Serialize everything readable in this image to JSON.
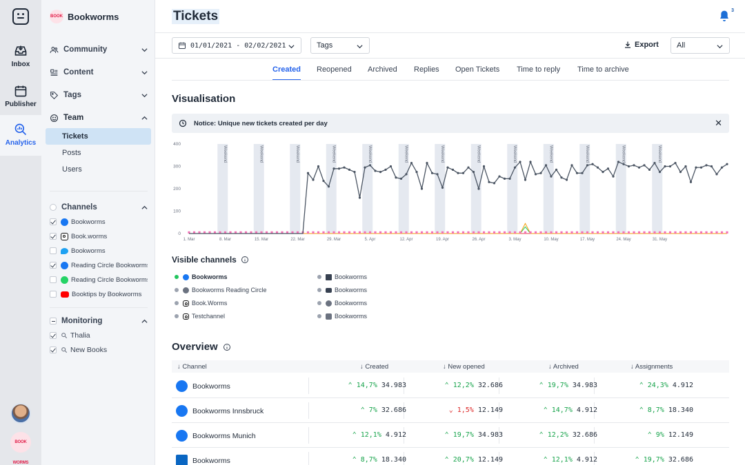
{
  "rail": {
    "items": [
      {
        "label": "Inbox",
        "icon": "inbox-icon"
      },
      {
        "label": "Publisher",
        "icon": "calendar-icon"
      },
      {
        "label": "Analytics",
        "icon": "analytics-icon"
      }
    ],
    "brand_avatar_text": "BOOK WORMS"
  },
  "sidebar": {
    "org_name": "Bookworms",
    "org_logo_text": "BOOK",
    "sections": [
      {
        "label": "Community",
        "icon": "people-icon"
      },
      {
        "label": "Content",
        "icon": "content-icon"
      },
      {
        "label": "Tags",
        "icon": "tag-icon"
      },
      {
        "label": "Team",
        "icon": "smiley-icon"
      }
    ],
    "team_items": [
      "Tickets",
      "Posts",
      "Users"
    ],
    "channels_label": "Channels",
    "channels": [
      {
        "label": "Bookworms",
        "type": "fb",
        "checked": true
      },
      {
        "label": "Book.worms",
        "type": "ig",
        "checked": true
      },
      {
        "label": "Bookworms",
        "type": "tw",
        "checked": false
      },
      {
        "label": "Reading Circle Bookworms",
        "type": "fb",
        "checked": true
      },
      {
        "label": "Reading Circle Bookworms",
        "type": "wa",
        "checked": false
      },
      {
        "label": "Booktips by Bookworms",
        "type": "yt",
        "checked": false
      }
    ],
    "monitoring_label": "Monitoring",
    "monitoring": [
      {
        "label": "Thalia",
        "checked": true
      },
      {
        "label": "New Books",
        "checked": true
      }
    ]
  },
  "header": {
    "title": "Tickets",
    "notification_count": "3",
    "date_range": "01/01/2021 - 02/02/2021",
    "tags_label": "Tags",
    "export_label": "Export",
    "filter_value": "All"
  },
  "tabs": [
    "Created",
    "Reopened",
    "Archived",
    "Replies",
    "Open Tickets",
    "Time to reply",
    "Time to archive"
  ],
  "visualisation": {
    "title": "Visualisation",
    "notice": "Notice: Unique new tickets created per day"
  },
  "chart_data": {
    "type": "line",
    "weekend_label": "Weekend",
    "x_tick_labels": [
      "1. Mar",
      "8. Mar",
      "15. Mar",
      "22. Mar",
      "29. Mar",
      "5. Apr",
      "12. Apr",
      "19. Apr",
      "26. Apr",
      "3. May",
      "10. May",
      "17. May",
      "24. May",
      "31. May"
    ],
    "y_ticks": [
      0,
      100,
      200,
      300,
      400
    ],
    "ylim": [
      0,
      400
    ],
    "weekend_start_indices": [
      6,
      13,
      20,
      27,
      34,
      41,
      48,
      55,
      62,
      69,
      76,
      83,
      90
    ],
    "series": [
      {
        "color": "#4b5563",
        "values": [
          0,
          0,
          0,
          0,
          0,
          0,
          0,
          0,
          0,
          0,
          0,
          0,
          0,
          0,
          0,
          0,
          0,
          0,
          0,
          0,
          0,
          0,
          0,
          270,
          240,
          300,
          235,
          210,
          290,
          290,
          295,
          285,
          275,
          160,
          295,
          305,
          280,
          275,
          285,
          300,
          250,
          245,
          265,
          315,
          275,
          200,
          315,
          270,
          265,
          205,
          295,
          285,
          270,
          270,
          295,
          275,
          200,
          300,
          230,
          225,
          255,
          245,
          245,
          295,
          320,
          240,
          320,
          265,
          270,
          305,
          255,
          285,
          250,
          240,
          305,
          270,
          270,
          305,
          310,
          295,
          275,
          290,
          255,
          320,
          310,
          300,
          305,
          295,
          305,
          285,
          315,
          275,
          300,
          300,
          315,
          275,
          300,
          230,
          295,
          295,
          305,
          300,
          265,
          295,
          310
        ]
      },
      {
        "color": "#f472b6",
        "values": [
          5,
          5,
          5,
          5,
          5,
          5,
          5,
          5,
          5,
          5,
          5,
          5,
          5,
          5,
          5,
          5,
          5,
          5,
          5,
          5,
          5,
          5,
          5,
          5,
          5,
          5,
          5,
          5,
          5,
          5,
          5,
          5,
          5,
          5,
          5,
          5,
          5,
          5,
          5,
          5,
          5,
          5,
          5,
          5,
          5,
          5,
          5,
          5,
          5,
          5,
          5,
          5,
          5,
          5,
          5,
          5,
          5,
          5,
          5,
          5,
          5,
          5,
          5,
          5,
          5,
          5,
          5,
          5,
          5,
          5,
          5,
          5,
          5,
          5,
          5,
          5,
          5,
          5,
          5,
          5,
          5,
          5,
          5,
          5,
          5,
          5,
          5,
          5,
          5,
          5,
          5,
          5,
          5,
          5,
          5,
          5,
          5,
          5,
          5,
          5,
          5,
          5,
          5,
          5,
          5
        ]
      },
      {
        "color": "#e5484d",
        "values": [
          0,
          0,
          0,
          0,
          0,
          0,
          0,
          0,
          0,
          0,
          0,
          0,
          0,
          0,
          0,
          0,
          0,
          0,
          0,
          0,
          0,
          0,
          0,
          0,
          0,
          0,
          0,
          0,
          0,
          0,
          0,
          0,
          0,
          0,
          0,
          0,
          0,
          0,
          0,
          0,
          0,
          0,
          0,
          0,
          0,
          0,
          0,
          0,
          0,
          0,
          0,
          0,
          0,
          0,
          0,
          0,
          0,
          0,
          0,
          0,
          0,
          0,
          0,
          0,
          0,
          0,
          0,
          0,
          0,
          0,
          0,
          0,
          0,
          0,
          0,
          0,
          0,
          0,
          0,
          0,
          0,
          0,
          0,
          0,
          0,
          0,
          0,
          0,
          0,
          0,
          0,
          0,
          0,
          0,
          0,
          0,
          0,
          0,
          0,
          0,
          0,
          0,
          0,
          0,
          0
        ]
      },
      {
        "color": "#22c55e",
        "values": [
          0,
          0,
          0,
          0,
          0,
          0,
          0,
          0,
          0,
          0,
          0,
          0,
          0,
          0,
          0,
          0,
          0,
          0,
          0,
          0,
          0,
          0,
          0,
          0,
          0,
          0,
          0,
          0,
          0,
          0,
          0,
          0,
          0,
          0,
          0,
          0,
          0,
          0,
          0,
          0,
          0,
          0,
          0,
          0,
          0,
          0,
          0,
          0,
          0,
          0,
          0,
          0,
          0,
          0,
          0,
          0,
          0,
          0,
          0,
          0,
          0,
          0,
          0,
          0,
          0,
          30,
          0,
          0,
          0,
          0,
          0,
          0,
          0,
          0,
          0,
          0,
          0,
          0,
          0,
          0,
          0,
          0,
          0,
          0,
          0,
          0,
          0,
          0,
          0,
          0,
          0,
          0,
          0,
          0,
          0,
          0,
          0,
          0,
          0,
          0,
          0,
          0,
          0,
          0,
          0
        ]
      },
      {
        "color": "#f59e0b",
        "values": [
          0,
          0,
          0,
          0,
          0,
          0,
          0,
          0,
          0,
          0,
          0,
          0,
          0,
          0,
          0,
          0,
          0,
          0,
          0,
          0,
          0,
          0,
          0,
          0,
          0,
          0,
          0,
          0,
          0,
          0,
          0,
          0,
          0,
          0,
          0,
          0,
          0,
          0,
          0,
          0,
          0,
          0,
          0,
          0,
          0,
          0,
          0,
          0,
          0,
          0,
          0,
          0,
          0,
          0,
          0,
          0,
          0,
          0,
          0,
          0,
          0,
          0,
          0,
          0,
          0,
          45,
          0,
          0,
          0,
          0,
          0,
          0,
          0,
          0,
          0,
          0,
          0,
          0,
          0,
          0,
          0,
          0,
          0,
          0,
          0,
          0,
          0,
          0,
          0,
          0,
          0,
          0,
          0,
          0,
          0,
          0,
          0,
          0,
          0,
          0,
          0,
          0,
          0,
          0,
          0
        ]
      }
    ]
  },
  "visible_channels": {
    "title": "Visible channels",
    "left": [
      {
        "label": "Bookworms",
        "type": "fb",
        "color": "#22c55e"
      },
      {
        "label": "Bookworms Reading Circle",
        "type": "fb",
        "color": "#9ca3af"
      },
      {
        "label": "Book.Worms",
        "type": "ig",
        "color": "#9ca3af"
      },
      {
        "label": "Testchannel",
        "type": "ig",
        "color": "#9ca3af"
      }
    ],
    "right": [
      {
        "label": "Bookworms",
        "type": "li"
      },
      {
        "label": "Bookworms",
        "type": "yt"
      },
      {
        "label": "Bookworms",
        "type": "tw"
      },
      {
        "label": "Bookworms",
        "type": "gb"
      }
    ]
  },
  "overview": {
    "title": "Overview",
    "columns": [
      "Channel",
      "Created",
      "New opened",
      "Archived",
      "Assignments"
    ],
    "rows": [
      {
        "channel": "Bookworms",
        "type": "fb",
        "cells": [
          {
            "d": "up",
            "p": "14,7%",
            "v": "34.983"
          },
          {
            "d": "up",
            "p": "12,2%",
            "v": "32.686"
          },
          {
            "d": "up",
            "p": "19,7%",
            "v": "34.983"
          },
          {
            "d": "up",
            "p": "24,3%",
            "v": "4.912"
          }
        ]
      },
      {
        "channel": "Bookworms Innsbruck",
        "type": "fb",
        "cells": [
          {
            "d": "up",
            "p": "7%",
            "v": "32.686"
          },
          {
            "d": "down",
            "p": "1,5%",
            "v": "12.149"
          },
          {
            "d": "up",
            "p": "14,7%",
            "v": "4.912"
          },
          {
            "d": "up",
            "p": "8,7%",
            "v": "18.340"
          }
        ]
      },
      {
        "channel": "Bookworms Munich",
        "type": "fb",
        "cells": [
          {
            "d": "up",
            "p": "12,1%",
            "v": "4.912"
          },
          {
            "d": "up",
            "p": "19,7%",
            "v": "34.983"
          },
          {
            "d": "up",
            "p": "12,2%",
            "v": "32.686"
          },
          {
            "d": "up",
            "p": "9%",
            "v": "12.149"
          }
        ]
      },
      {
        "channel": "Bookworms",
        "type": "li",
        "cells": [
          {
            "d": "up",
            "p": "8,7%",
            "v": "18.340"
          },
          {
            "d": "up",
            "p": "20,7%",
            "v": "12.149"
          },
          {
            "d": "up",
            "p": "12,1%",
            "v": "4.912"
          },
          {
            "d": "up",
            "p": "19,7%",
            "v": "32.686"
          }
        ]
      }
    ]
  }
}
